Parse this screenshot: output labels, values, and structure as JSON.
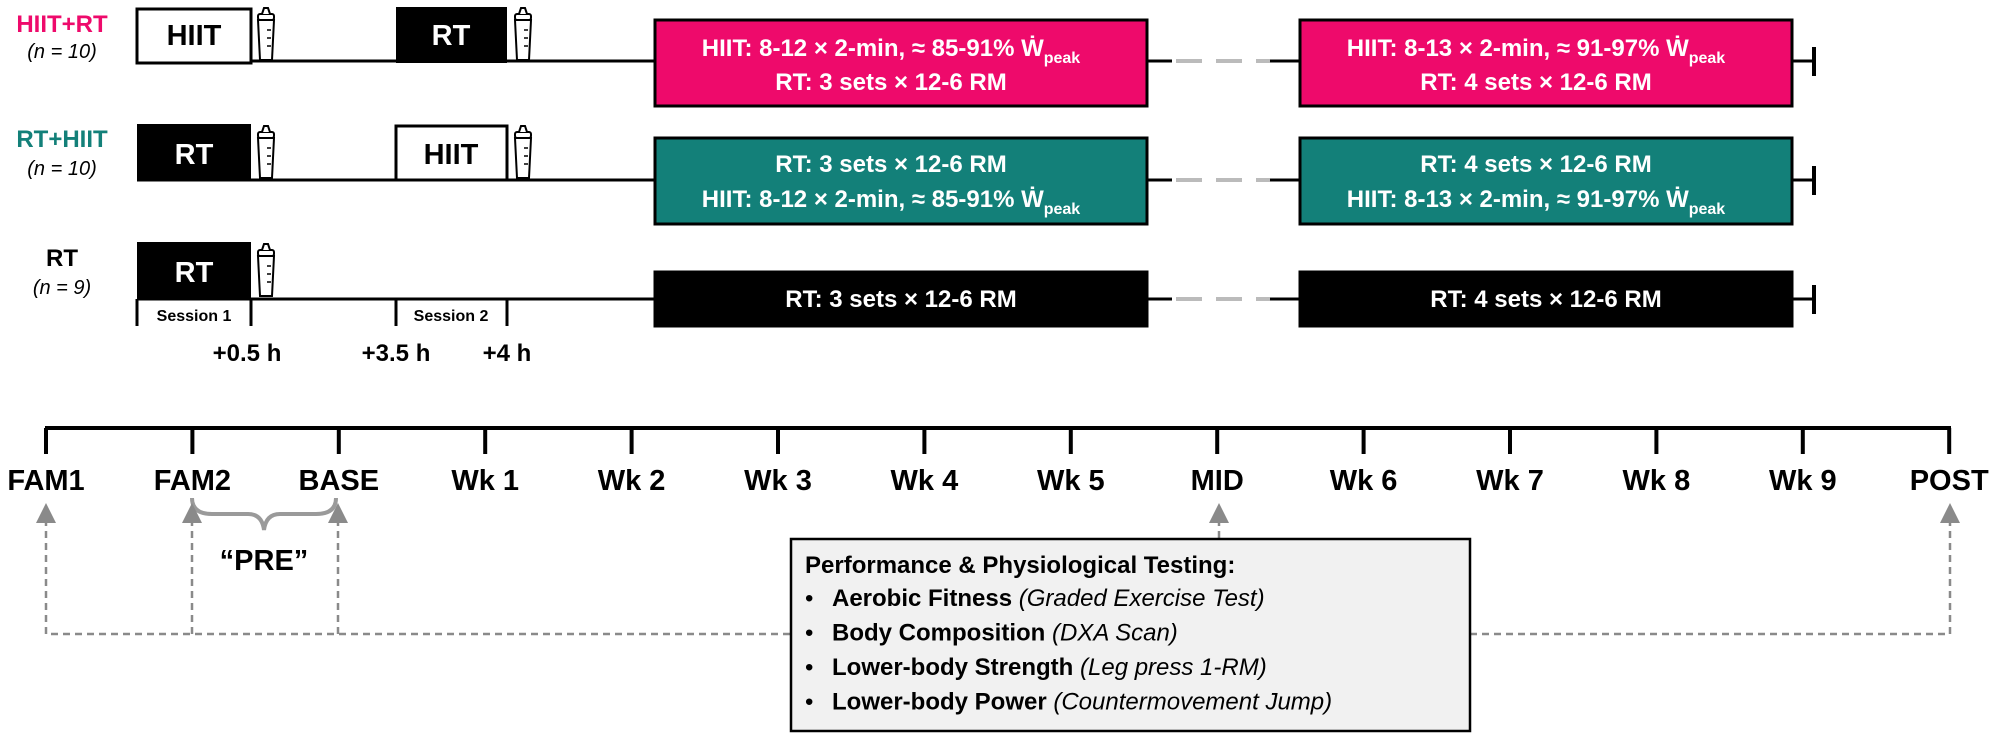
{
  "colors": {
    "hiit_rt": "#ee0a6b",
    "rt_hiit": "#138079",
    "rt": "#000000",
    "dashed_gray": "#bbbbbb",
    "testing_box_bg": "#f1f1f1"
  },
  "groups": {
    "hiit_rt": {
      "name": "HIIT+RT",
      "n": "(n = 10)",
      "session1_label": "HIIT",
      "session2_label": "RT",
      "block1": {
        "line1": "HIIT: 8-12 × 2-min, ≈ 85-91% Ẇ",
        "sub1": "peak",
        "line2": "RT: 3 sets × 12-6 RM"
      },
      "block2": {
        "line1": "HIIT: 8-13 × 2-min, ≈ 91-97% Ẇ",
        "sub1": "peak",
        "line2": "RT: 4 sets × 12-6 RM"
      }
    },
    "rt_hiit": {
      "name": "RT+HIIT",
      "n": "(n = 10)",
      "session1_label": "RT",
      "session2_label": "HIIT",
      "block1": {
        "line1": "RT: 3 sets × 12-6 RM",
        "line2": "HIIT: 8-12 × 2-min, ≈ 85-91% Ẇ",
        "sub2": "peak"
      },
      "block2": {
        "line1": "RT: 4 sets × 12-6 RM",
        "line2": "HIIT: 8-13 × 2-min, ≈ 91-97% Ẇ",
        "sub2": "peak"
      }
    },
    "rt": {
      "name": "RT",
      "n": "(n = 9)",
      "session1_label": "RT",
      "block1": {
        "line1": "RT: 3 sets × 12-6 RM"
      },
      "block2": {
        "line1": "RT: 4 sets × 12-6 RM"
      }
    }
  },
  "sessions": {
    "session1": "Session 1",
    "session2": "Session 2",
    "times": [
      "+0.5 h",
      "+3.5 h",
      "+4 h"
    ]
  },
  "timeline": {
    "labels": [
      "FAM1",
      "FAM2",
      "BASE",
      "Wk 1",
      "Wk 2",
      "Wk 3",
      "Wk 4",
      "Wk 5",
      "MID",
      "Wk 6",
      "Wk 7",
      "Wk 8",
      "Wk 9",
      "POST"
    ],
    "pre_label": "“PRE”"
  },
  "testing": {
    "title": "Performance & Physiological Testing:",
    "items": [
      {
        "bold": "Aerobic Fitness",
        "italic": "(Graded Exercise Test)"
      },
      {
        "bold": "Body Composition",
        "italic": "(DXA Scan)"
      },
      {
        "bold": "Lower-body Strength",
        "italic": "(Leg press 1-RM)"
      },
      {
        "bold": "Lower-body Power",
        "italic": "(Countermovement Jump)"
      }
    ]
  }
}
